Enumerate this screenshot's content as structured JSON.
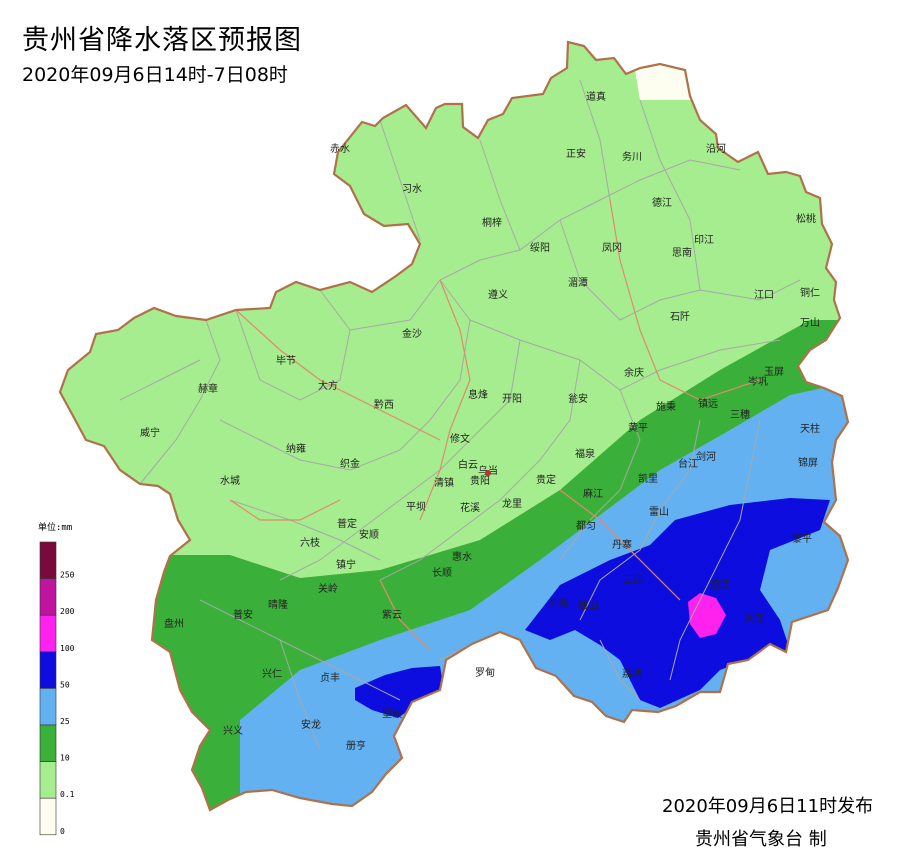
{
  "title": "贵州省降水落区预报图",
  "subtitle": "2020年09月6日14时-7日08时",
  "issued": "2020年09月6日11时发布",
  "agency": "贵州省气象台  制",
  "legend": {
    "title": "单位:mm",
    "levels": [
      {
        "label": "250",
        "color": "#7a0a3c"
      },
      {
        "label": "200",
        "color": "#c013a0"
      },
      {
        "label": "100",
        "color": "#ff22ee"
      },
      {
        "label": "50",
        "color": "#0d0ddf"
      },
      {
        "label": "25",
        "color": "#63b1f0"
      },
      {
        "label": "10",
        "color": "#3aaf3a"
      },
      {
        "label": "0.1",
        "color": "#a6ed8f"
      },
      {
        "label": "0",
        "color": "#fdfdf0"
      }
    ]
  },
  "colors": {
    "border": "#b0714a",
    "county_line": "#a8a8a8",
    "rain_0_1_10": "#a6ed8f",
    "rain_10_25": "#3aaf3a",
    "rain_25_50": "#63b1f0",
    "rain_50_100": "#0d0ddf",
    "rain_100_250": "#ff22ee",
    "no_rain": "#fdfdf0"
  },
  "cities": [
    {
      "name": "道真"
    },
    {
      "name": "赤水"
    },
    {
      "name": "习水"
    },
    {
      "name": "正安"
    },
    {
      "name": "务川"
    },
    {
      "name": "沿河"
    },
    {
      "name": "德江"
    },
    {
      "name": "松桃"
    },
    {
      "name": "桐梓"
    },
    {
      "name": "绥阳"
    },
    {
      "name": "凤冈"
    },
    {
      "name": "印江"
    },
    {
      "name": "思南"
    },
    {
      "name": "湄潭"
    },
    {
      "name": "遵义"
    },
    {
      "name": "江口"
    },
    {
      "name": "铜仁"
    },
    {
      "name": "石阡"
    },
    {
      "name": "万山"
    },
    {
      "name": "金沙"
    },
    {
      "name": "毕节"
    },
    {
      "name": "大方"
    },
    {
      "name": "赫章"
    },
    {
      "name": "黔西"
    },
    {
      "name": "息烽"
    },
    {
      "name": "开阳"
    },
    {
      "name": "瓮安"
    },
    {
      "name": "余庆"
    },
    {
      "name": "玉屏"
    },
    {
      "name": "岑巩"
    },
    {
      "name": "施秉"
    },
    {
      "name": "镇远"
    },
    {
      "name": "三穗"
    },
    {
      "name": "天柱"
    },
    {
      "name": "威宁"
    },
    {
      "name": "纳雍"
    },
    {
      "name": "修文"
    },
    {
      "name": "黄平"
    },
    {
      "name": "织金"
    },
    {
      "name": "白云"
    },
    {
      "name": "乌当"
    },
    {
      "name": "贵阳"
    },
    {
      "name": "福泉"
    },
    {
      "name": "台江"
    },
    {
      "name": "剑河"
    },
    {
      "name": "锦屏"
    },
    {
      "name": "水城"
    },
    {
      "name": "清镇"
    },
    {
      "name": "凯里"
    },
    {
      "name": "贵定"
    },
    {
      "name": "麻江"
    },
    {
      "name": "平坝"
    },
    {
      "name": "花溪"
    },
    {
      "name": "龙里"
    },
    {
      "name": "普定"
    },
    {
      "name": "安顺"
    },
    {
      "name": "都匀"
    },
    {
      "name": "雷山"
    },
    {
      "name": "黎平"
    },
    {
      "name": "六枝"
    },
    {
      "name": "丹寨"
    },
    {
      "name": "镇宁"
    },
    {
      "name": "惠水"
    },
    {
      "name": "长顺"
    },
    {
      "name": "关岭"
    },
    {
      "name": "三都"
    },
    {
      "name": "榕江"
    },
    {
      "name": "盘州"
    },
    {
      "name": "普安"
    },
    {
      "name": "晴隆"
    },
    {
      "name": "紫云"
    },
    {
      "name": "平塘"
    },
    {
      "name": "独山"
    },
    {
      "name": "从江"
    },
    {
      "name": "兴仁"
    },
    {
      "name": "贞丰"
    },
    {
      "name": "罗甸"
    },
    {
      "name": "荔波"
    },
    {
      "name": "望谟"
    },
    {
      "name": "兴义"
    },
    {
      "name": "安龙"
    },
    {
      "name": "册亨"
    }
  ]
}
